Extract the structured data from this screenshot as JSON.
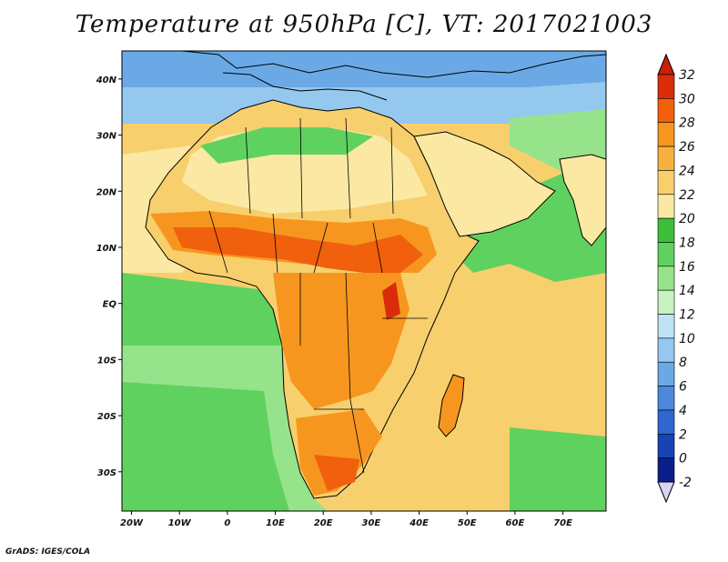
{
  "map": {
    "title": "Temperature at 950hPa [C], VT: 2017021003",
    "credit": "GrADS: IGES/COLA",
    "lon_range": [
      -22,
      79
    ],
    "lat_range": [
      -37,
      45
    ],
    "lon_ticks": [
      {
        "value": -20,
        "label": "20W"
      },
      {
        "value": -10,
        "label": "10W"
      },
      {
        "value": 0,
        "label": "0"
      },
      {
        "value": 10,
        "label": "10E"
      },
      {
        "value": 20,
        "label": "20E"
      },
      {
        "value": 30,
        "label": "30E"
      },
      {
        "value": 40,
        "label": "40E"
      },
      {
        "value": 50,
        "label": "50E"
      },
      {
        "value": 60,
        "label": "60E"
      },
      {
        "value": 70,
        "label": "70E"
      }
    ],
    "lat_ticks": [
      {
        "value": 40,
        "label": "40N"
      },
      {
        "value": 30,
        "label": "30N"
      },
      {
        "value": 20,
        "label": "20N"
      },
      {
        "value": 10,
        "label": "10N"
      },
      {
        "value": 0,
        "label": "EQ"
      },
      {
        "value": -10,
        "label": "10S"
      },
      {
        "value": -20,
        "label": "20S"
      },
      {
        "value": -30,
        "label": "30S"
      }
    ]
  },
  "colorbar": {
    "labels": [
      "32",
      "30",
      "28",
      "26",
      "24",
      "22",
      "20",
      "18",
      "16",
      "14",
      "12",
      "10",
      "8",
      "6",
      "4",
      "2",
      "0",
      "-2"
    ],
    "colors": [
      "#d92d0a",
      "#f0600d",
      "#f7961f",
      "#f6b13f",
      "#f8cf6d",
      "#fbe9a3",
      "#3bbf3b",
      "#5fd15f",
      "#96e38c",
      "#c9f2c3",
      "#bde3f5",
      "#94c8ef",
      "#6aa9e6",
      "#4d88dc",
      "#2f66cf",
      "#1743b5",
      "#0b1f8a"
    ],
    "top_arrow_color": "#c8200a",
    "bottom_arrow_color": "#dcd4f4"
  },
  "palette": {
    "ocean_south": "#5fd15f",
    "ocean_indian": "#f8cf6d",
    "north_ocean": "#94c8ef",
    "land_sahara": "#fbe9a3",
    "land_hot": "#f0600d",
    "land_warm": "#f7961f",
    "border": "#000000"
  }
}
